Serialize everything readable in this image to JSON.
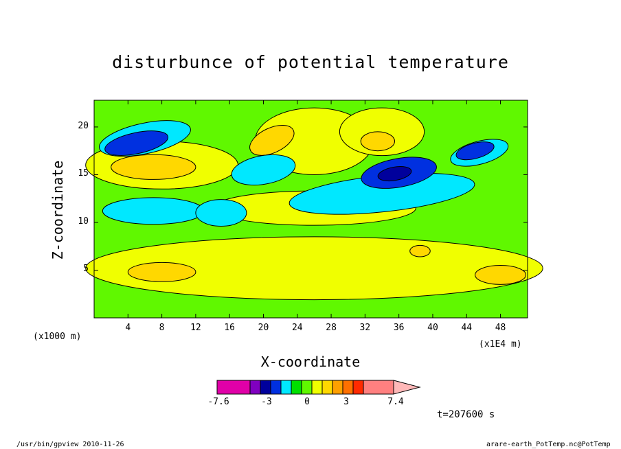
{
  "chart_data": {
    "type": "heatmap",
    "title": "disturbunce of potential temperature",
    "xlabel": "X-coordinate",
    "ylabel": "Z-coordinate",
    "x_unit_left": "(x1000 m)",
    "x_unit_right": "(x1E4 m)",
    "xticks": [
      4,
      8,
      12,
      16,
      20,
      24,
      28,
      32,
      36,
      40,
      44,
      48
    ],
    "yticks": [
      5,
      10,
      15,
      20
    ],
    "xlim": [
      0,
      51.2
    ],
    "ylim": [
      0,
      22.8
    ],
    "colorbar": {
      "min": -7.6,
      "max": 7.4,
      "labels": [
        "-7.6",
        "-3",
        "0",
        "3",
        "7.4"
      ],
      "colors": [
        "#e000a8",
        "#8000c0",
        "#00009c",
        "#0030e0",
        "#00e8ff",
        "#00e000",
        "#60f800",
        "#f0ff00",
        "#ffd800",
        "#ffa000",
        "#ff7000",
        "#ff2a00",
        "#ff8080",
        "#ffb8b8"
      ]
    },
    "time_label": "t=207600 s",
    "grid": false
  },
  "footer": {
    "left": "/usr/bin/gpview   2010-11-26",
    "right": "arare-earth_PotTemp.nc@PotTemp"
  }
}
